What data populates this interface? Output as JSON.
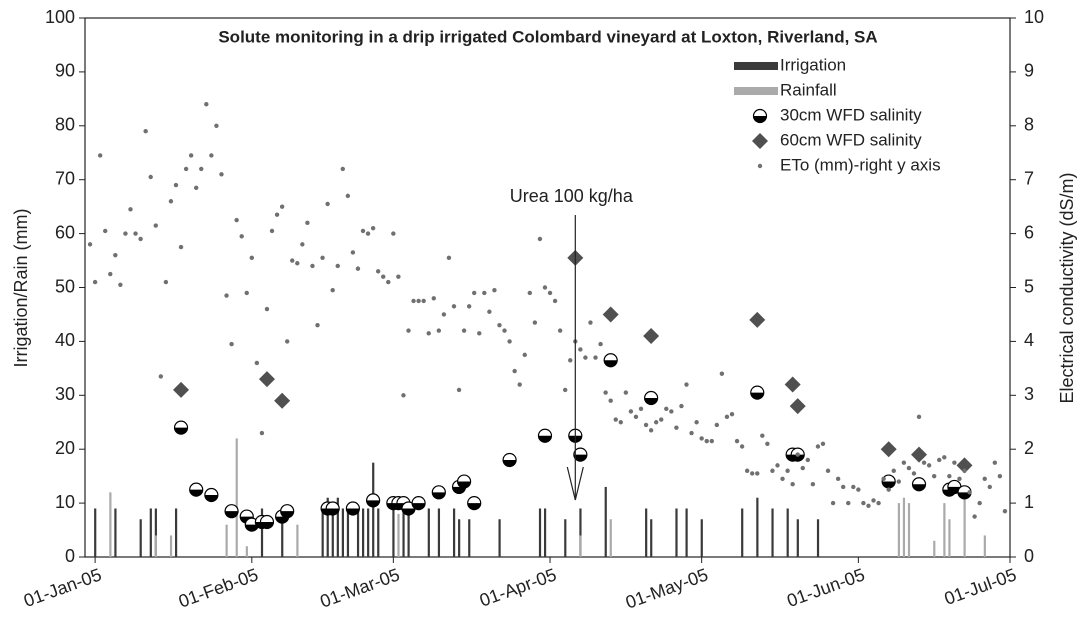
{
  "chart_data": {
    "type": "combo",
    "title": "Solute monitoring in a drip irrigated Colombard vineyard at Loxton, Riverland, SA",
    "y_label": "Irrigation/Rain (mm)",
    "y2_label": "Electrical conductivity (dS/m)",
    "xlim": [
      "2004-12-30",
      "2005-07-01"
    ],
    "xticks": [
      {
        "value": "2005-01-01",
        "label": "01-Jan-05"
      },
      {
        "value": "2005-02-01",
        "label": "01-Feb-05"
      },
      {
        "value": "2005-03-01",
        "label": "01-Mar-05"
      },
      {
        "value": "2005-04-01",
        "label": "01-Apr-05"
      },
      {
        "value": "2005-05-01",
        "label": "01-May-05"
      },
      {
        "value": "2005-06-01",
        "label": "01-Jun-05"
      },
      {
        "value": "2005-07-01",
        "label": "01-Jul-05"
      }
    ],
    "ylim": [
      0,
      100
    ],
    "yticks": [
      0,
      10,
      20,
      30,
      40,
      50,
      60,
      70,
      80,
      90,
      100
    ],
    "y2lim": [
      0,
      10
    ],
    "y2ticks": [
      0,
      1,
      2,
      3,
      4,
      5,
      6,
      7,
      8,
      9,
      10
    ],
    "legend": "upper right",
    "annotations": [
      {
        "text": "Urea 100 kg/ha",
        "x": "2005-04-06"
      }
    ],
    "series": [
      {
        "name": "Irrigation",
        "type": "bar",
        "color": "#3a3a3a",
        "x": [
          "2005-01-01",
          "2005-01-05",
          "2005-01-10",
          "2005-01-12",
          "2005-01-13",
          "2005-01-17",
          "2005-02-03",
          "2005-02-07",
          "2005-02-15",
          "2005-02-16",
          "2005-02-17",
          "2005-02-18",
          "2005-02-19",
          "2005-02-20",
          "2005-02-22",
          "2005-02-23",
          "2005-02-24",
          "2005-02-25",
          "2005-02-26",
          "2005-03-01",
          "2005-03-03",
          "2005-03-04",
          "2005-03-08",
          "2005-03-10",
          "2005-03-13",
          "2005-03-14",
          "2005-03-16",
          "2005-03-22",
          "2005-03-30",
          "2005-03-31",
          "2005-04-04",
          "2005-04-07",
          "2005-04-12",
          "2005-04-20",
          "2005-04-21",
          "2005-04-26",
          "2005-04-28",
          "2005-05-01",
          "2005-05-09",
          "2005-05-12",
          "2005-05-15",
          "2005-05-18",
          "2005-05-20",
          "2005-05-24"
        ],
        "values": [
          9,
          9,
          7,
          9,
          9,
          9,
          9,
          9,
          9,
          11,
          9,
          11,
          9,
          9,
          9,
          9,
          9,
          17.5,
          9,
          9,
          9,
          9,
          9,
          9,
          9,
          7,
          7,
          7,
          9,
          9,
          7,
          9,
          13,
          9,
          7,
          9,
          9,
          7,
          9,
          11,
          9,
          9,
          7,
          7
        ]
      },
      {
        "name": "Rainfall",
        "type": "bar",
        "color": "#aaaaaa",
        "x": [
          "2005-01-04",
          "2005-01-13",
          "2005-01-16",
          "2005-01-27",
          "2005-01-29",
          "2005-01-31",
          "2005-02-10",
          "2005-03-02",
          "2005-04-07",
          "2005-04-13",
          "2005-06-09",
          "2005-06-10",
          "2005-06-11",
          "2005-06-16",
          "2005-06-18",
          "2005-06-19",
          "2005-06-22",
          "2005-06-26"
        ],
        "values": [
          12,
          4,
          4,
          6,
          22,
          2,
          6,
          8,
          4,
          7,
          10,
          11,
          10,
          3,
          10,
          7,
          11,
          4
        ]
      },
      {
        "name": "30cm WFD salinity",
        "type": "scatter",
        "marker": "half-circle",
        "color": "#000000",
        "axis": "y2",
        "x": [
          "2005-01-18",
          "2005-01-21",
          "2005-01-24",
          "2005-01-28",
          "2005-01-31",
          "2005-02-01",
          "2005-02-03",
          "2005-02-04",
          "2005-02-07",
          "2005-02-08",
          "2005-02-16",
          "2005-02-17",
          "2005-02-21",
          "2005-02-25",
          "2005-03-01",
          "2005-03-02",
          "2005-03-03",
          "2005-03-04",
          "2005-03-06",
          "2005-03-10",
          "2005-03-14",
          "2005-03-15",
          "2005-03-17",
          "2005-03-24",
          "2005-03-31",
          "2005-04-06",
          "2005-04-07",
          "2005-04-13",
          "2005-04-21",
          "2005-05-12",
          "2005-05-19",
          "2005-05-20",
          "2005-06-07",
          "2005-06-13",
          "2005-06-19",
          "2005-06-20",
          "2005-06-22"
        ],
        "values": [
          2.4,
          1.25,
          1.15,
          0.85,
          0.75,
          0.6,
          0.65,
          0.65,
          0.75,
          0.85,
          0.9,
          0.9,
          0.9,
          1.05,
          1.0,
          1.0,
          1.0,
          0.9,
          1.0,
          1.2,
          1.3,
          1.4,
          1.0,
          1.8,
          2.25,
          2.25,
          1.9,
          3.65,
          2.95,
          3.05,
          1.9,
          1.9,
          1.4,
          1.35,
          1.25,
          1.3,
          1.2
        ]
      },
      {
        "name": "60cm WFD salinity",
        "type": "scatter",
        "marker": "diamond",
        "color": "#505050",
        "axis": "y2",
        "x": [
          "2005-01-18",
          "2005-02-04",
          "2005-02-07",
          "2005-04-06",
          "2005-04-13",
          "2005-04-21",
          "2005-05-12",
          "2005-05-19",
          "2005-05-20",
          "2005-06-07",
          "2005-06-13",
          "2005-06-22"
        ],
        "values": [
          3.1,
          3.3,
          2.9,
          5.55,
          4.5,
          4.1,
          4.4,
          3.2,
          2.8,
          2.0,
          1.9,
          1.7
        ]
      },
      {
        "name": "ETo (mm)-right y axis",
        "type": "scatter",
        "marker": "dot",
        "color": "#707070",
        "axis": "y2",
        "x": [
          "2004-12-31",
          "2005-01-01",
          "2005-01-02",
          "2005-01-03",
          "2005-01-04",
          "2005-01-05",
          "2005-01-06",
          "2005-01-07",
          "2005-01-08",
          "2005-01-09",
          "2005-01-10",
          "2005-01-11",
          "2005-01-12",
          "2005-01-13",
          "2005-01-14",
          "2005-01-15",
          "2005-01-16",
          "2005-01-17",
          "2005-01-18",
          "2005-01-19",
          "2005-01-20",
          "2005-01-21",
          "2005-01-22",
          "2005-01-23",
          "2005-01-24",
          "2005-01-25",
          "2005-01-26",
          "2005-01-27",
          "2005-01-28",
          "2005-01-29",
          "2005-01-30",
          "2005-01-31",
          "2005-02-01",
          "2005-02-02",
          "2005-02-03",
          "2005-02-04",
          "2005-02-05",
          "2005-02-06",
          "2005-02-07",
          "2005-02-08",
          "2005-02-09",
          "2005-02-10",
          "2005-02-11",
          "2005-02-12",
          "2005-02-13",
          "2005-02-14",
          "2005-02-15",
          "2005-02-16",
          "2005-02-17",
          "2005-02-18",
          "2005-02-19",
          "2005-02-20",
          "2005-02-21",
          "2005-02-22",
          "2005-02-23",
          "2005-02-24",
          "2005-02-25",
          "2005-02-26",
          "2005-02-27",
          "2005-02-28",
          "2005-03-01",
          "2005-03-02",
          "2005-03-03",
          "2005-03-04",
          "2005-03-05",
          "2005-03-06",
          "2005-03-07",
          "2005-03-08",
          "2005-03-09",
          "2005-03-10",
          "2005-03-11",
          "2005-03-12",
          "2005-03-13",
          "2005-03-14",
          "2005-03-15",
          "2005-03-16",
          "2005-03-17",
          "2005-03-18",
          "2005-03-19",
          "2005-03-20",
          "2005-03-21",
          "2005-03-22",
          "2005-03-23",
          "2005-03-24",
          "2005-03-25",
          "2005-03-26",
          "2005-03-27",
          "2005-03-28",
          "2005-03-29",
          "2005-03-30",
          "2005-03-31",
          "2005-04-01",
          "2005-04-02",
          "2005-04-03",
          "2005-04-04",
          "2005-04-05",
          "2005-04-06",
          "2005-04-07",
          "2005-04-08",
          "2005-04-09",
          "2005-04-10",
          "2005-04-11",
          "2005-04-12",
          "2005-04-13",
          "2005-04-14",
          "2005-04-15",
          "2005-04-16",
          "2005-04-17",
          "2005-04-18",
          "2005-04-19",
          "2005-04-20",
          "2005-04-21",
          "2005-04-22",
          "2005-04-23",
          "2005-04-24",
          "2005-04-25",
          "2005-04-26",
          "2005-04-27",
          "2005-04-28",
          "2005-04-29",
          "2005-04-30",
          "2005-05-01",
          "2005-05-02",
          "2005-05-03",
          "2005-05-04",
          "2005-05-05",
          "2005-05-06",
          "2005-05-07",
          "2005-05-08",
          "2005-05-09",
          "2005-05-10",
          "2005-05-11",
          "2005-05-12",
          "2005-05-13",
          "2005-05-14",
          "2005-05-15",
          "2005-05-16",
          "2005-05-17",
          "2005-05-18",
          "2005-05-19",
          "2005-05-20",
          "2005-05-21",
          "2005-05-22",
          "2005-05-23",
          "2005-05-24",
          "2005-05-25",
          "2005-05-26",
          "2005-05-27",
          "2005-05-28",
          "2005-05-29",
          "2005-05-30",
          "2005-05-31",
          "2005-06-01",
          "2005-06-02",
          "2005-06-03",
          "2005-06-04",
          "2005-06-05",
          "2005-06-06",
          "2005-06-07",
          "2005-06-08",
          "2005-06-09",
          "2005-06-10",
          "2005-06-11",
          "2005-06-12",
          "2005-06-13",
          "2005-06-14",
          "2005-06-15",
          "2005-06-16",
          "2005-06-17",
          "2005-06-18",
          "2005-06-19",
          "2005-06-20",
          "2005-06-21",
          "2005-06-22",
          "2005-06-23",
          "2005-06-24",
          "2005-06-25",
          "2005-06-26",
          "2005-06-27",
          "2005-06-28",
          "2005-06-29",
          "2005-06-30"
        ],
        "values": [
          5.8,
          5.1,
          7.45,
          6.05,
          5.25,
          5.6,
          5.05,
          6.0,
          6.45,
          6.0,
          5.9,
          7.9,
          7.05,
          6.15,
          3.35,
          5.1,
          6.6,
          6.9,
          5.75,
          7.2,
          7.45,
          6.85,
          7.2,
          8.4,
          7.45,
          8.0,
          7.1,
          4.85,
          3.95,
          6.25,
          5.95,
          4.9,
          5.55,
          3.6,
          2.3,
          4.6,
          6.05,
          6.35,
          6.5,
          4.0,
          5.5,
          5.45,
          5.8,
          6.2,
          5.4,
          4.3,
          5.55,
          6.55,
          4.95,
          5.4,
          7.2,
          6.7,
          5.65,
          5.35,
          6.05,
          6.0,
          6.1,
          5.3,
          5.2,
          5.1,
          6.0,
          5.2,
          3.0,
          4.2,
          4.75,
          4.75,
          4.75,
          4.15,
          4.8,
          4.2,
          4.5,
          5.55,
          4.65,
          3.1,
          4.2,
          4.65,
          4.9,
          4.15,
          4.9,
          4.55,
          4.95,
          4.3,
          4.2,
          4.0,
          3.45,
          3.2,
          3.75,
          4.9,
          4.35,
          5.9,
          5.0,
          4.9,
          4.75,
          4.2,
          3.1,
          3.65,
          4.0,
          3.85,
          3.7,
          4.35,
          3.7,
          3.95,
          3.05,
          2.9,
          2.55,
          2.5,
          3.05,
          2.7,
          2.6,
          2.75,
          2.45,
          2.35,
          2.5,
          2.55,
          2.75,
          2.7,
          2.4,
          2.8,
          3.2,
          2.3,
          2.5,
          2.2,
          2.15,
          2.15,
          2.45,
          3.4,
          2.6,
          2.65,
          2.15,
          2.05,
          1.6,
          1.55,
          1.55,
          2.25,
          2.1,
          1.6,
          1.7,
          1.45,
          1.6,
          1.35,
          1.9,
          1.65,
          1.8,
          1.35,
          2.05,
          2.1,
          1.6,
          1.0,
          1.45,
          1.3,
          1.0,
          1.3,
          1.25,
          1.0,
          0.95,
          1.05,
          1.0,
          1.45,
          1.25,
          1.6,
          1.4,
          1.75,
          1.65,
          1.55,
          2.6,
          1.75,
          1.7,
          1.5,
          1.8,
          1.85,
          1.5,
          1.75,
          1.45,
          1.6,
          1.2,
          0.75,
          1.0,
          1.45,
          1.3,
          1.75,
          1.5,
          0.85
        ]
      }
    ]
  }
}
